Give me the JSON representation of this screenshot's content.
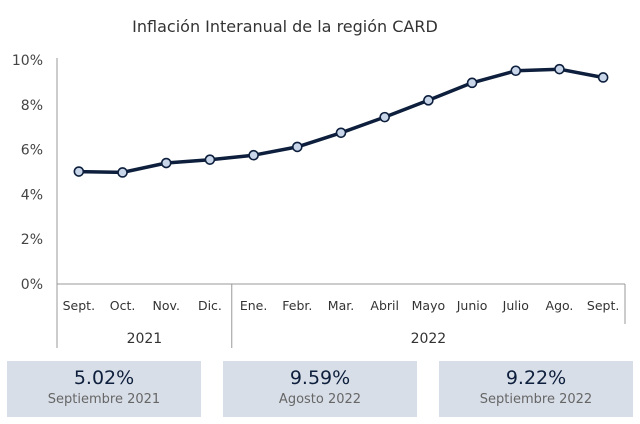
{
  "chart_data": {
    "type": "line",
    "title": "Inflación Interanual de la región CARD",
    "categories": [
      "Sept.",
      "Oct.",
      "Nov.",
      "Dic.",
      "Ene.",
      "Febr.",
      "Mar.",
      "Abril",
      "Mayo",
      "Junio",
      "Julio",
      "Ago.",
      "Sept."
    ],
    "years": [
      {
        "label": "2021",
        "start": 0,
        "end": 3
      },
      {
        "label": "2022",
        "start": 4,
        "end": 12
      }
    ],
    "values": [
      5.02,
      4.98,
      5.4,
      5.55,
      5.75,
      6.12,
      6.75,
      7.45,
      8.2,
      8.98,
      9.52,
      9.59,
      9.22
    ],
    "yticks": [
      "0%",
      "2%",
      "4%",
      "6%",
      "8%",
      "10%"
    ],
    "ylim": [
      0,
      10
    ],
    "grid": false,
    "line_color": "#0d1f3c",
    "marker_fill": "#c9d6ea"
  },
  "cards": [
    {
      "value": "5.02%",
      "label": "Septiembre 2021"
    },
    {
      "value": "9.59%",
      "label": "Agosto 2022"
    },
    {
      "value": "9.22%",
      "label": "Septiembre 2022"
    }
  ]
}
